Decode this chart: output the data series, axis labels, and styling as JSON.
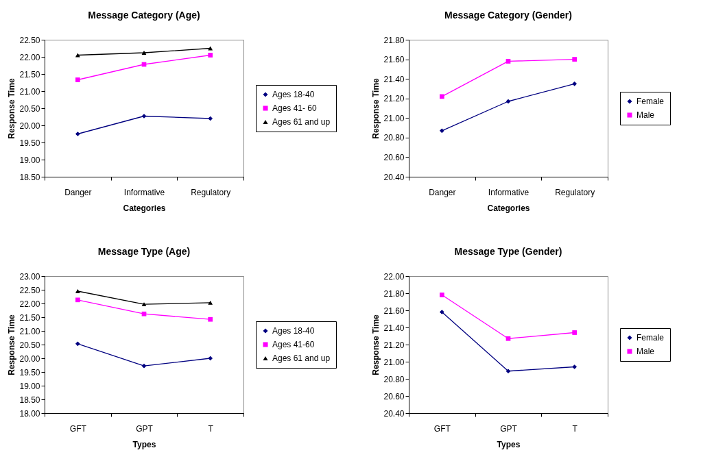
{
  "chart_data": [
    {
      "type": "line",
      "title": "Message Category (Age)",
      "xlabel": "Categories",
      "ylabel": "Response Time",
      "categories": [
        "Danger",
        "Informative",
        "Regulatory"
      ],
      "ylim": [
        18.5,
        22.5
      ],
      "yticks": [
        {
          "value": 18.5,
          "label": "18.50"
        },
        {
          "value": 19,
          "label": "19.00"
        },
        {
          "value": 19.5,
          "label": "19.50"
        },
        {
          "value": 20,
          "label": "20.00"
        },
        {
          "value": 20.5,
          "label": "20.50"
        },
        {
          "value": 21,
          "label": "21.00"
        },
        {
          "value": 21.5,
          "label": "21.50"
        },
        {
          "value": 22,
          "label": "22.00"
        },
        {
          "value": 22.5,
          "label": "22.50"
        }
      ],
      "grid": false,
      "legend": "right",
      "series": [
        {
          "name": "Ages 18-40",
          "color": "#000080",
          "marker": "diamond",
          "values": [
            19.75,
            20.27,
            20.2
          ]
        },
        {
          "name": "Ages 41- 60",
          "color": "#ff00ff",
          "marker": "square",
          "values": [
            21.33,
            21.78,
            22.05
          ]
        },
        {
          "name": "Ages 61 and up",
          "color": "#000000",
          "marker": "triangle",
          "values": [
            22.05,
            22.12,
            22.25
          ]
        }
      ]
    },
    {
      "type": "line",
      "title": "Message Category (Gender)",
      "xlabel": "Categories",
      "ylabel": "Response Time",
      "categories": [
        "Danger",
        "Informative",
        "Regulatory"
      ],
      "ylim": [
        20.4,
        21.8
      ],
      "yticks": [
        {
          "value": 20.4,
          "label": "20.40"
        },
        {
          "value": 20.6,
          "label": "20.60"
        },
        {
          "value": 20.8,
          "label": "20.80"
        },
        {
          "value": 21,
          "label": "21.00"
        },
        {
          "value": 21.2,
          "label": "21.20"
        },
        {
          "value": 21.4,
          "label": "21.40"
        },
        {
          "value": 21.6,
          "label": "21.60"
        },
        {
          "value": 21.8,
          "label": "21.80"
        }
      ],
      "grid": false,
      "legend": "right",
      "series": [
        {
          "name": "Female",
          "color": "#000080",
          "marker": "diamond",
          "values": [
            20.87,
            21.17,
            21.35
          ]
        },
        {
          "name": "Male",
          "color": "#ff00ff",
          "marker": "square",
          "values": [
            21.22,
            21.58,
            21.6
          ]
        }
      ]
    },
    {
      "type": "line",
      "title": "Message Type (Age)",
      "xlabel": "Types",
      "ylabel": "Response Time",
      "categories": [
        "GFT",
        "GPT",
        "T"
      ],
      "ylim": [
        18,
        23
      ],
      "yticks": [
        {
          "value": 18,
          "label": "18.00"
        },
        {
          "value": 18.5,
          "label": "18.50"
        },
        {
          "value": 19,
          "label": "19.00"
        },
        {
          "value": 19.5,
          "label": "19.50"
        },
        {
          "value": 20,
          "label": "20.00"
        },
        {
          "value": 20.5,
          "label": "20.50"
        },
        {
          "value": 21,
          "label": "21.00"
        },
        {
          "value": 21.5,
          "label": "21.50"
        },
        {
          "value": 22,
          "label": "22.00"
        },
        {
          "value": 22.5,
          "label": "22.50"
        },
        {
          "value": 23,
          "label": "23.00"
        }
      ],
      "grid": false,
      "legend": "right",
      "series": [
        {
          "name": "Ages 18-40",
          "color": "#000080",
          "marker": "diamond",
          "values": [
            20.53,
            19.72,
            20.0
          ]
        },
        {
          "name": "Ages 41-60",
          "color": "#ff00ff",
          "marker": "square",
          "values": [
            22.13,
            21.62,
            21.42
          ]
        },
        {
          "name": "Ages 61 and up",
          "color": "#000000",
          "marker": "triangle",
          "values": [
            22.45,
            21.97,
            22.03
          ]
        }
      ]
    },
    {
      "type": "line",
      "title": "Message Type (Gender)",
      "xlabel": "Types",
      "ylabel": "Response Time",
      "categories": [
        "GFT",
        "GPT",
        "T"
      ],
      "ylim": [
        20.4,
        22
      ],
      "yticks": [
        {
          "value": 20.4,
          "label": "20.40"
        },
        {
          "value": 20.6,
          "label": "20.60"
        },
        {
          "value": 20.8,
          "label": "20.80"
        },
        {
          "value": 21,
          "label": "21.00"
        },
        {
          "value": 21.2,
          "label": "21.20"
        },
        {
          "value": 21.4,
          "label": "21.40"
        },
        {
          "value": 21.6,
          "label": "21.60"
        },
        {
          "value": 21.8,
          "label": "21.80"
        },
        {
          "value": 22,
          "label": "22.00"
        }
      ],
      "grid": false,
      "legend": "right",
      "series": [
        {
          "name": "Female",
          "color": "#000080",
          "marker": "diamond",
          "values": [
            21.58,
            20.89,
            20.94
          ]
        },
        {
          "name": "Male",
          "color": "#ff00ff",
          "marker": "square",
          "values": [
            21.78,
            21.27,
            21.34
          ]
        }
      ]
    }
  ]
}
